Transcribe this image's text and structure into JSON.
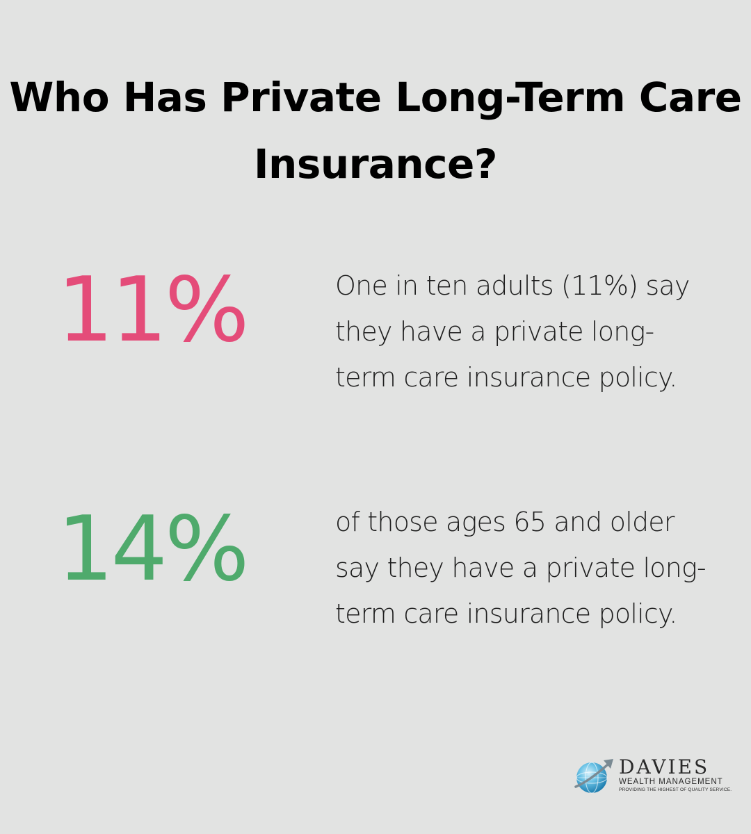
{
  "title": "Who Has Private Long-Term Care Insurance?",
  "colors": {
    "background": "#e2e3e2",
    "stat1": "#e44c79",
    "stat2": "#4faa6c",
    "text": "#1e1e1e"
  },
  "stats": [
    {
      "value": "11%",
      "description": "One in ten adults (11%) say they have a private long-term care insurance policy."
    },
    {
      "value": "14%",
      "description": "of those ages 65 and older say they have a private long-term care insurance policy."
    }
  ],
  "logo": {
    "name": "DAVIES",
    "subtitle": "WEALTH MANAGEMENT",
    "tagline": "PROVIDING THE HIGHEST OF QUALITY SERVICE.",
    "icon": "globe-arrow-icon"
  }
}
